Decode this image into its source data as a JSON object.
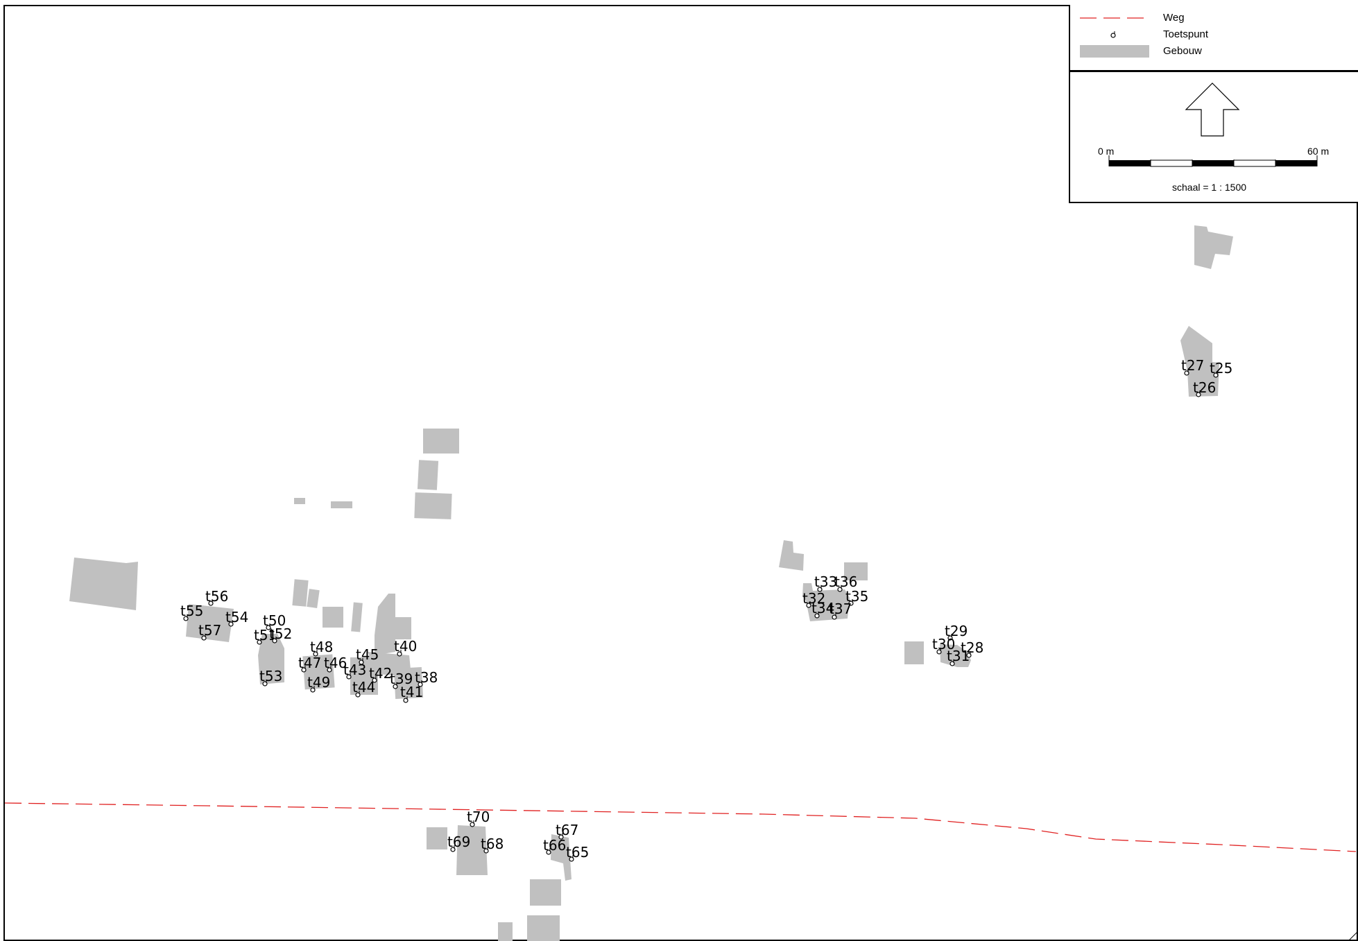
{
  "legend": {
    "items": [
      {
        "label": "Weg",
        "icon": "road-dashed-line-icon",
        "color": "#e02020"
      },
      {
        "label": "Toetspunt",
        "icon": "test-point-icon",
        "color": "#000000"
      },
      {
        "label": "Gebouw",
        "icon": "building-swatch-icon",
        "color": "#c0c0c0"
      }
    ]
  },
  "north_arrow": {
    "icon": "north-arrow-icon"
  },
  "scale_bar": {
    "start_label": "0 m",
    "end_label": "60 m",
    "scale_text": "schaal = 1 : 1500"
  },
  "points": [
    {
      "label": "t25"
    },
    {
      "label": "t26"
    },
    {
      "label": "t27"
    },
    {
      "label": "t28"
    },
    {
      "label": "t29"
    },
    {
      "label": "t30"
    },
    {
      "label": "t31"
    },
    {
      "label": "t32"
    },
    {
      "label": "t33"
    },
    {
      "label": "t34"
    },
    {
      "label": "t35"
    },
    {
      "label": "t36"
    },
    {
      "label": "t37"
    },
    {
      "label": "t38"
    },
    {
      "label": "t39"
    },
    {
      "label": "t40"
    },
    {
      "label": "t41"
    },
    {
      "label": "t42"
    },
    {
      "label": "t43"
    },
    {
      "label": "t44"
    },
    {
      "label": "t45"
    },
    {
      "label": "t46"
    },
    {
      "label": "t47"
    },
    {
      "label": "t48"
    },
    {
      "label": "t49"
    },
    {
      "label": "t50"
    },
    {
      "label": "t51"
    },
    {
      "label": "t52"
    },
    {
      "label": "t53"
    },
    {
      "label": "t54"
    },
    {
      "label": "t55"
    },
    {
      "label": "t56"
    },
    {
      "label": "t57"
    },
    {
      "label": "t65"
    },
    {
      "label": "t66"
    },
    {
      "label": "t67"
    },
    {
      "label": "t68"
    },
    {
      "label": "t69"
    },
    {
      "label": "t70"
    }
  ]
}
